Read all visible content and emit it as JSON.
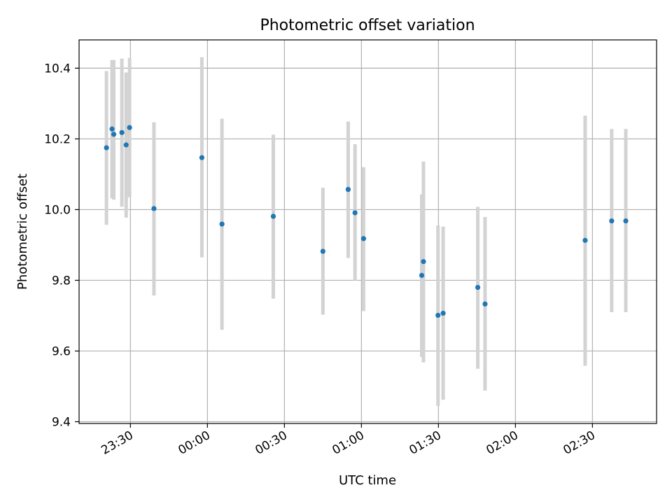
{
  "chart_data": {
    "type": "scatter",
    "title": "Photometric offset variation",
    "xlabel": "UTC time",
    "ylabel": "Photometric offset",
    "x_axis_kind": "time",
    "xlim": [
      "23:10",
      "02:55"
    ],
    "ylim": [
      9.395,
      10.48
    ],
    "x_ticks": [
      "23:30",
      "00:00",
      "00:30",
      "01:00",
      "01:30",
      "02:00",
      "02:30"
    ],
    "y_ticks": [
      9.4,
      9.6,
      9.8,
      10.0,
      10.2,
      10.4
    ],
    "y_tick_labels": [
      "9.4",
      "9.6",
      "9.8",
      "10.0",
      "10.2",
      "10.4"
    ],
    "grid": true,
    "marker_color": "#1f77b4",
    "errorbar_color": "#d3d3d3",
    "series": [
      {
        "points": [
          {
            "x": "23:20:40",
            "y": 10.175,
            "err_low": 9.957,
            "err_high": 10.392
          },
          {
            "x": "23:22:50",
            "y": 10.228,
            "err_low": 10.032,
            "err_high": 10.423
          },
          {
            "x": "23:23:30",
            "y": 10.213,
            "err_low": 10.028,
            "err_high": 10.423
          },
          {
            "x": "23:26:40",
            "y": 10.218,
            "err_low": 10.008,
            "err_high": 10.427
          },
          {
            "x": "23:28:20",
            "y": 10.183,
            "err_low": 9.977,
            "err_high": 10.388
          },
          {
            "x": "23:29:40",
            "y": 10.232,
            "err_low": 10.035,
            "err_high": 10.429
          },
          {
            "x": "23:39:10",
            "y": 10.003,
            "err_low": 9.757,
            "err_high": 10.247
          },
          {
            "x": "23:57:50",
            "y": 10.147,
            "err_low": 9.865,
            "err_high": 10.431
          },
          {
            "x": "00:05:40",
            "y": 9.959,
            "err_low": 9.66,
            "err_high": 10.257
          },
          {
            "x": "00:25:40",
            "y": 9.981,
            "err_low": 9.748,
            "err_high": 10.212
          },
          {
            "x": "00:45:00",
            "y": 9.882,
            "err_low": 9.703,
            "err_high": 10.062
          },
          {
            "x": "00:54:50",
            "y": 10.057,
            "err_low": 9.863,
            "err_high": 10.249
          },
          {
            "x": "00:57:30",
            "y": 9.991,
            "err_low": 9.8,
            "err_high": 10.185
          },
          {
            "x": "01:00:50",
            "y": 9.918,
            "err_low": 9.713,
            "err_high": 10.12
          },
          {
            "x": "01:23:30",
            "y": 9.814,
            "err_low": 9.583,
            "err_high": 10.043
          },
          {
            "x": "01:24:10",
            "y": 9.853,
            "err_low": 9.568,
            "err_high": 10.136
          },
          {
            "x": "01:29:50",
            "y": 9.701,
            "err_low": 9.445,
            "err_high": 9.955
          },
          {
            "x": "01:31:50",
            "y": 9.707,
            "err_low": 9.462,
            "err_high": 9.952
          },
          {
            "x": "01:45:20",
            "y": 9.78,
            "err_low": 9.55,
            "err_high": 10.008
          },
          {
            "x": "01:48:10",
            "y": 9.733,
            "err_low": 9.488,
            "err_high": 9.979
          },
          {
            "x": "02:27:10",
            "y": 9.913,
            "err_low": 9.558,
            "err_high": 10.266
          },
          {
            "x": "02:37:30",
            "y": 9.968,
            "err_low": 9.71,
            "err_high": 10.228
          },
          {
            "x": "02:43:00",
            "y": 9.968,
            "err_low": 9.71,
            "err_high": 10.228
          }
        ]
      }
    ]
  }
}
